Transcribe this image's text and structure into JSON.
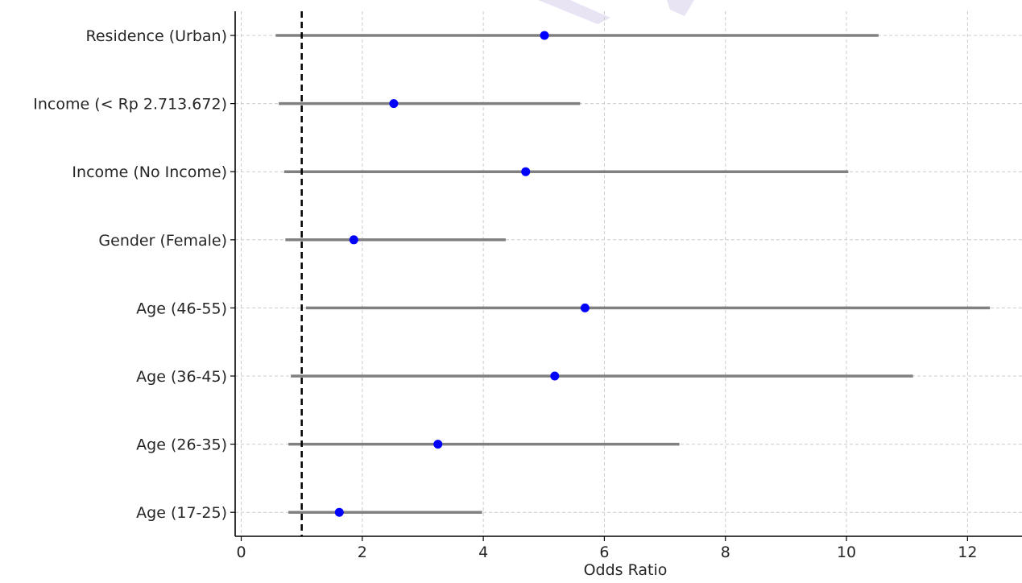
{
  "chart_data": {
    "type": "scatter",
    "subtype": "forest-plot",
    "title": "",
    "xlabel": "Odds Ratio",
    "ylabel": "",
    "xlim": [
      -0.1,
      12.9
    ],
    "xticks": [
      0,
      2,
      4,
      6,
      8,
      10,
      12
    ],
    "xtick_labels": [
      "0",
      "2",
      "4",
      "6",
      "8",
      "10",
      "12"
    ],
    "reference_line": {
      "x": 1,
      "style": "dashed",
      "color": "#000000"
    },
    "grid": true,
    "categories": [
      "Age (17-25)",
      "Age (26-35)",
      "Age (36-45)",
      "Age (46-55)",
      "Gender (Female)",
      "Income (No Income)",
      "Income (< Rp 2.713.672)",
      "Residence (Urban)"
    ],
    "series": [
      {
        "odds_ratio": [
          1.62,
          3.25,
          5.18,
          5.68,
          1.86,
          4.7,
          2.52,
          5.01
        ],
        "ci_lower": [
          0.78,
          0.78,
          0.82,
          1.07,
          0.73,
          0.71,
          0.62,
          0.57
        ],
        "ci_upper": [
          3.98,
          7.24,
          11.1,
          12.37,
          4.37,
          10.03,
          5.6,
          10.53
        ],
        "point_color": "#0000ff",
        "ci_color": "#808080"
      }
    ]
  }
}
